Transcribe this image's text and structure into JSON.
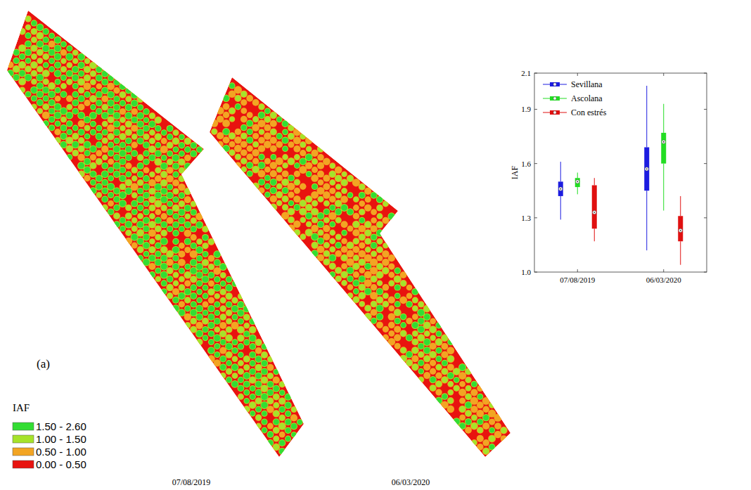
{
  "panel_label": "(a)",
  "maps": [
    {
      "date": "07/08/2019"
    },
    {
      "date": "06/03/2020"
    }
  ],
  "map_legend": {
    "title": "IAF",
    "classes": [
      {
        "label": "1.50 - 2.60",
        "color": "#33dd33"
      },
      {
        "label": "1.00 - 1.50",
        "color": "#a6e32a"
      },
      {
        "label": "0.50 - 1.00",
        "color": "#f2a523"
      },
      {
        "label": "0.00 - 0.50",
        "color": "#e8130f"
      }
    ]
  },
  "chart_data": {
    "type": "box",
    "ylabel": "IAF",
    "categories": [
      "07/08/2019",
      "06/03/2020"
    ],
    "ylim": [
      1.0,
      2.1
    ],
    "yticks": [
      {
        "value": 1.0,
        "label": "1.0"
      },
      1.3,
      1.6,
      1.9,
      2.1
    ],
    "legend": "upper left",
    "series": [
      {
        "name": "Sevillana",
        "color": "#1c1ce0",
        "values": [
          {
            "min": 1.29,
            "q1": 1.42,
            "median": 1.46,
            "q3": 1.5,
            "max": 1.61
          },
          {
            "min": 1.12,
            "q1": 1.45,
            "median": 1.57,
            "q3": 1.69,
            "max": 2.03
          }
        ]
      },
      {
        "name": "Ascolana",
        "color": "#22dd22",
        "values": [
          {
            "min": 1.43,
            "q1": 1.47,
            "median": 1.5,
            "q3": 1.52,
            "max": 1.55
          },
          {
            "min": 1.34,
            "q1": 1.6,
            "median": 1.72,
            "q3": 1.77,
            "max": 1.93
          }
        ]
      },
      {
        "name": "Con estrés",
        "color": "#e01010",
        "values": [
          {
            "min": 1.17,
            "q1": 1.24,
            "median": 1.33,
            "q3": 1.48,
            "max": 1.52
          },
          {
            "min": 1.04,
            "q1": 1.17,
            "median": 1.23,
            "q3": 1.31,
            "max": 1.42
          }
        ]
      }
    ]
  }
}
